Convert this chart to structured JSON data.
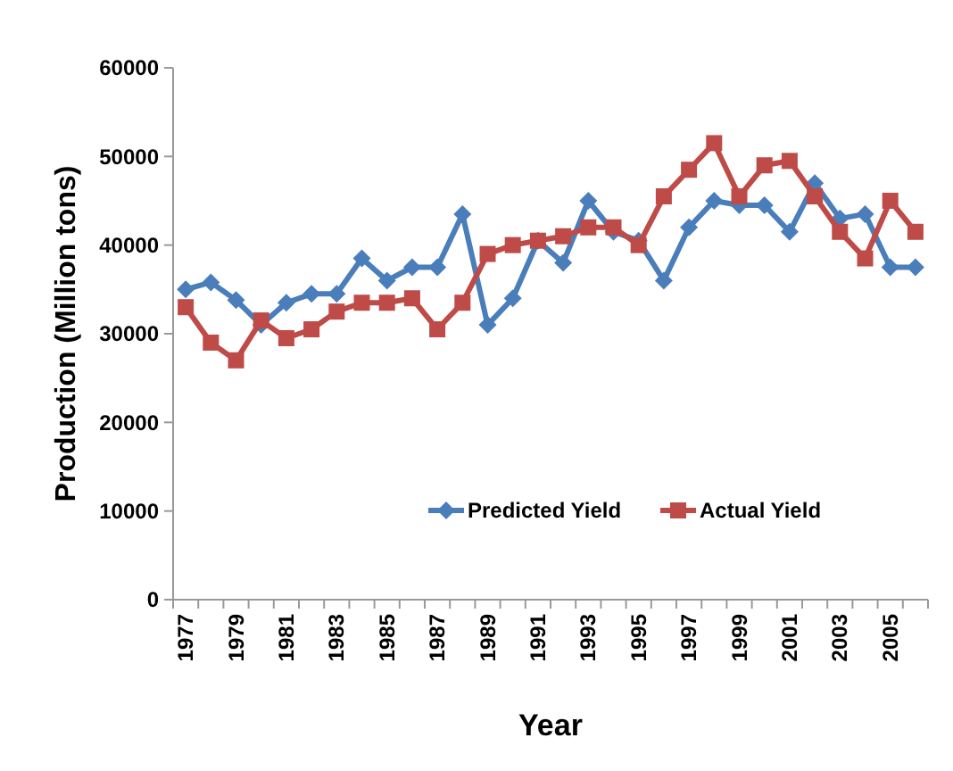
{
  "chart_data": {
    "type": "line",
    "xlabel": "Year",
    "ylabel": "Production (Million tons)",
    "categories": [
      "1977",
      null,
      "1979",
      null,
      "1981",
      null,
      "1983",
      null,
      "1985",
      null,
      "1987",
      null,
      "1989",
      null,
      "1991",
      null,
      "1993",
      null,
      "1995",
      null,
      "1997",
      null,
      "1999",
      null,
      "2001",
      null,
      "2003",
      null,
      "2005",
      null
    ],
    "series": [
      {
        "name": "Predicted Yield",
        "color": "#4a7ebb",
        "marker": "diamond",
        "values": [
          35000,
          35800,
          33800,
          31000,
          33500,
          34500,
          34500,
          38500,
          36000,
          37500,
          37500,
          43500,
          31000,
          34000,
          40500,
          38000,
          45000,
          41500,
          40500,
          36000,
          42000,
          45000,
          44500,
          44500,
          41500,
          47000,
          43000,
          43500,
          37500,
          37500
        ]
      },
      {
        "name": "Actual Yield",
        "color": "#be4b48",
        "marker": "square",
        "values": [
          33000,
          29000,
          27000,
          31500,
          29500,
          30500,
          32500,
          33500,
          33500,
          34000,
          30500,
          33500,
          39000,
          40000,
          40500,
          41000,
          42000,
          42000,
          40000,
          45500,
          48500,
          51500,
          45500,
          49000,
          49500,
          45500,
          41500,
          38500,
          45000,
          41500
        ]
      }
    ],
    "ylim": [
      0,
      60000
    ],
    "yticks": [
      0,
      10000,
      20000,
      30000,
      40000,
      50000,
      60000
    ],
    "grid": false,
    "legend": "bottom"
  }
}
